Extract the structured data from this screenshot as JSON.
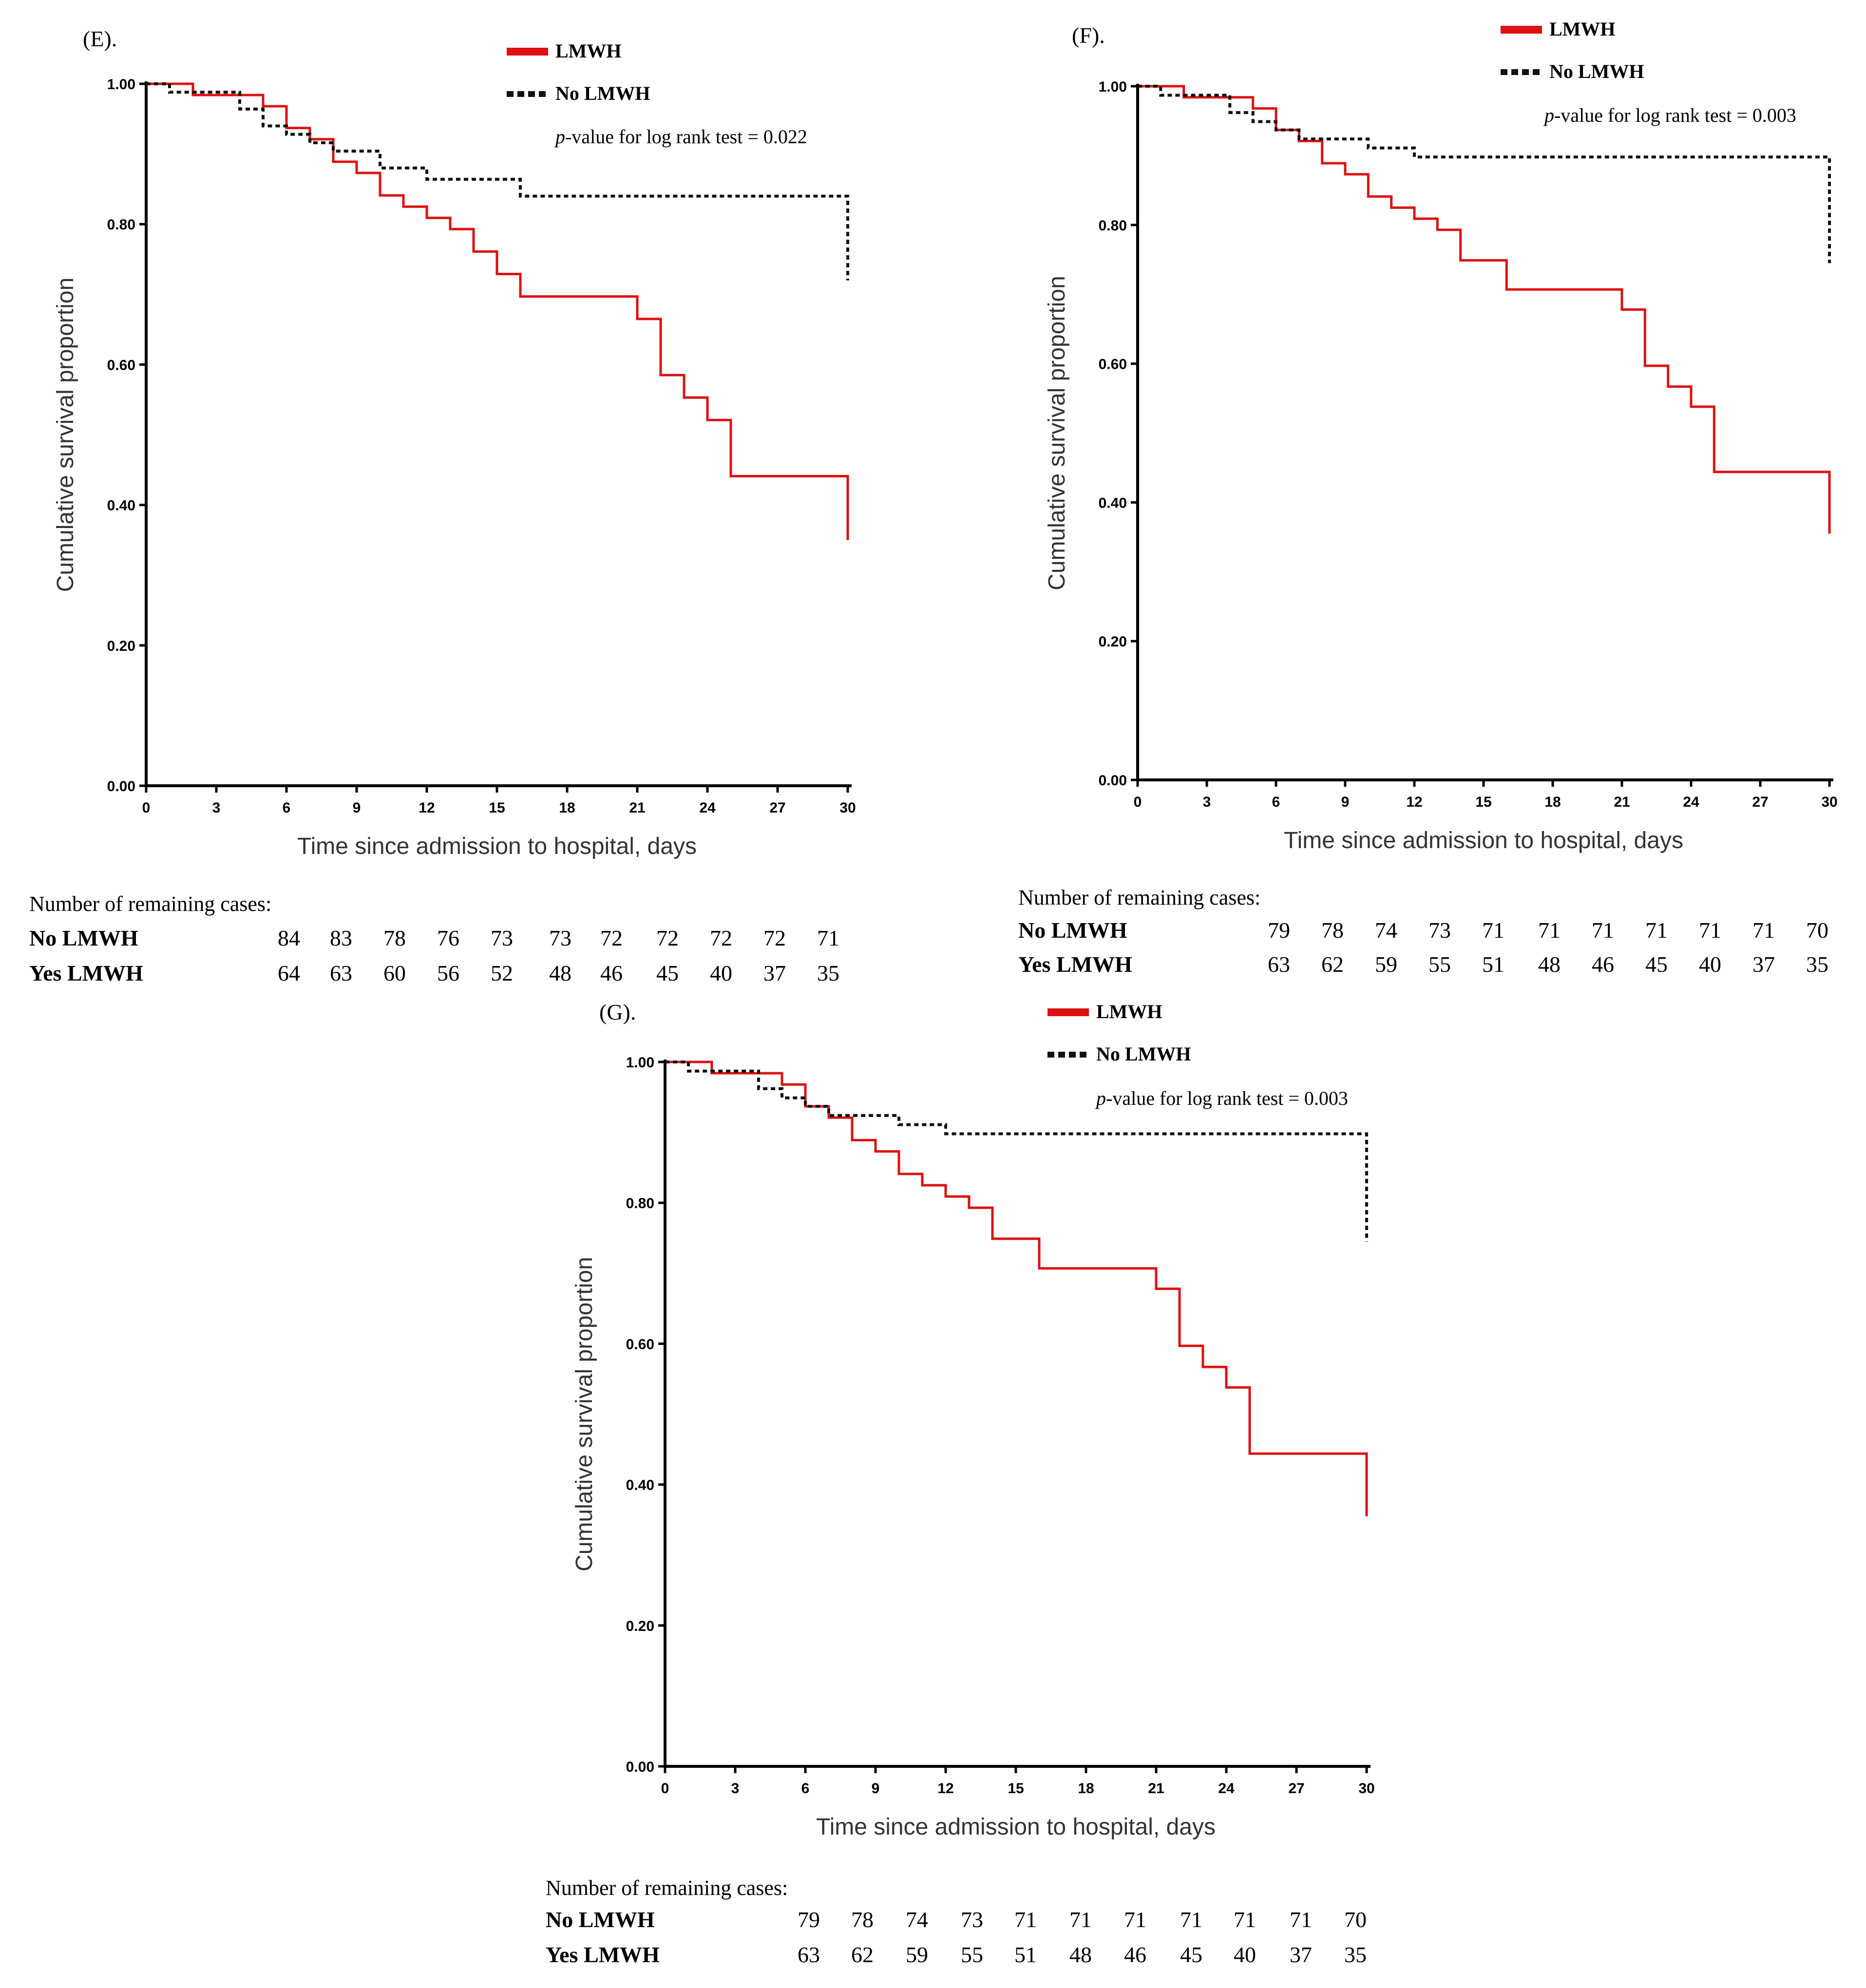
{
  "colors": {
    "lmwh": "#dd1111",
    "no_lmwh": "#111111",
    "axis": "#000000"
  },
  "chart_data": [
    {
      "type": "line",
      "panel_label": "(E).",
      "xlabel": "Time since admission to hospital, days",
      "ylabel": "Cumulative survival proportion",
      "xlim": [
        0,
        30
      ],
      "ylim": [
        0,
        1
      ],
      "x_ticks": [
        "0",
        "3",
        "6",
        "9",
        "12",
        "15",
        "18",
        "21",
        "24",
        "27",
        "30"
      ],
      "y_ticks": [
        "0.00",
        "0.20",
        "0.40",
        "0.60",
        "0.80",
        "1.00"
      ],
      "annotation": {
        "italic": "p",
        "rest": "-value for log rank test = 0.022"
      },
      "series": [
        {
          "name": "LMWH",
          "style": "solid",
          "x": [
            0,
            2,
            5,
            6,
            7,
            8,
            9,
            10,
            11,
            12,
            13,
            14,
            15,
            16,
            21,
            22,
            23,
            24,
            25,
            30,
            30
          ],
          "y": [
            1.0,
            0.984,
            0.968,
            0.937,
            0.921,
            0.889,
            0.873,
            0.841,
            0.825,
            0.809,
            0.793,
            0.761,
            0.729,
            0.697,
            0.665,
            0.585,
            0.553,
            0.521,
            0.441,
            0.441,
            0.35
          ]
        },
        {
          "name": "No LMWH",
          "style": "dashed",
          "x": [
            0,
            1,
            4,
            5,
            6,
            7,
            8,
            10,
            12,
            16,
            30,
            30
          ],
          "y": [
            1.0,
            0.988,
            0.964,
            0.94,
            0.928,
            0.916,
            0.904,
            0.88,
            0.864,
            0.84,
            0.84,
            0.72
          ]
        }
      ],
      "risk_table": {
        "title": "Number of remaining cases:",
        "rows": [
          {
            "label": "No LMWH",
            "values": [
              "84",
              "83",
              "78",
              "76",
              "73",
              "73",
              "72",
              "72",
              "72",
              "72",
              "71"
            ]
          },
          {
            "label": "Yes LMWH",
            "values": [
              "64",
              "63",
              "60",
              "56",
              "52",
              "48",
              "46",
              "45",
              "40",
              "37",
              "35"
            ]
          }
        ]
      }
    },
    {
      "type": "line",
      "panel_label": "(F).",
      "xlabel": "Time since admission to hospital, days",
      "ylabel": "Cumulative survival proportion",
      "xlim": [
        0,
        30
      ],
      "ylim": [
        0,
        1
      ],
      "x_ticks": [
        "0",
        "3",
        "6",
        "9",
        "12",
        "15",
        "18",
        "21",
        "24",
        "27",
        "30"
      ],
      "y_ticks": [
        "0.00",
        "0.20",
        "0.40",
        "0.60",
        "0.80",
        "1.00"
      ],
      "annotation": {
        "italic": "p",
        "rest": "-value for log rank test = 0.003"
      },
      "series": [
        {
          "name": "LMWH",
          "style": "solid",
          "x": [
            0,
            2,
            5,
            6,
            7,
            8,
            9,
            10,
            11,
            12,
            13,
            14,
            16,
            21,
            22,
            23,
            24,
            25,
            30,
            30
          ],
          "y": [
            1.0,
            0.984,
            0.968,
            0.937,
            0.921,
            0.889,
            0.873,
            0.841,
            0.825,
            0.809,
            0.793,
            0.749,
            0.707,
            0.678,
            0.597,
            0.567,
            0.538,
            0.444,
            0.444,
            0.355
          ]
        },
        {
          "name": "No LMWH",
          "style": "dashed",
          "x": [
            0,
            1,
            4,
            5,
            6,
            7,
            10,
            12,
            30,
            30
          ],
          "y": [
            1.0,
            0.987,
            0.962,
            0.949,
            0.937,
            0.924,
            0.911,
            0.898,
            0.898,
            0.745
          ]
        }
      ],
      "risk_table": {
        "title": "Number of remaining cases:",
        "rows": [
          {
            "label": "No LMWH",
            "values": [
              "79",
              "78",
              "74",
              "73",
              "71",
              "71",
              "71",
              "71",
              "71",
              "71",
              "70"
            ]
          },
          {
            "label": "Yes LMWH",
            "values": [
              "63",
              "62",
              "59",
              "55",
              "51",
              "48",
              "46",
              "45",
              "40",
              "37",
              "35"
            ]
          }
        ]
      }
    },
    {
      "type": "line",
      "panel_label": "(G).",
      "xlabel": "Time since admission to hospital, days",
      "ylabel": "Cumulative survival proportion",
      "xlim": [
        0,
        30
      ],
      "ylim": [
        0,
        1
      ],
      "x_ticks": [
        "0",
        "3",
        "6",
        "9",
        "12",
        "15",
        "18",
        "21",
        "24",
        "27",
        "30"
      ],
      "y_ticks": [
        "0.00",
        "0.20",
        "0.40",
        "0.60",
        "0.80",
        "1.00"
      ],
      "annotation": {
        "italic": "p",
        "rest": "-value for log rank test = 0.003"
      },
      "series": [
        {
          "name": "LMWH",
          "style": "solid",
          "x": [
            0,
            2,
            5,
            6,
            7,
            8,
            9,
            10,
            11,
            12,
            13,
            14,
            16,
            21,
            22,
            23,
            24,
            25,
            30,
            30
          ],
          "y": [
            1.0,
            0.984,
            0.968,
            0.937,
            0.921,
            0.889,
            0.873,
            0.841,
            0.825,
            0.809,
            0.793,
            0.749,
            0.707,
            0.678,
            0.597,
            0.567,
            0.538,
            0.444,
            0.444,
            0.355
          ]
        },
        {
          "name": "No LMWH",
          "style": "dashed",
          "x": [
            0,
            1,
            4,
            5,
            6,
            7,
            10,
            12,
            30,
            30
          ],
          "y": [
            1.0,
            0.987,
            0.962,
            0.949,
            0.937,
            0.924,
            0.911,
            0.898,
            0.898,
            0.745
          ]
        }
      ],
      "risk_table": {
        "title": "Number of remaining cases:",
        "rows": [
          {
            "label": "No LMWH",
            "values": [
              "79",
              "78",
              "74",
              "73",
              "71",
              "71",
              "71",
              "71",
              "71",
              "71",
              "70"
            ]
          },
          {
            "label": "Yes LMWH",
            "values": [
              "63",
              "62",
              "59",
              "55",
              "51",
              "48",
              "46",
              "45",
              "40",
              "37",
              "35"
            ]
          }
        ]
      }
    }
  ]
}
